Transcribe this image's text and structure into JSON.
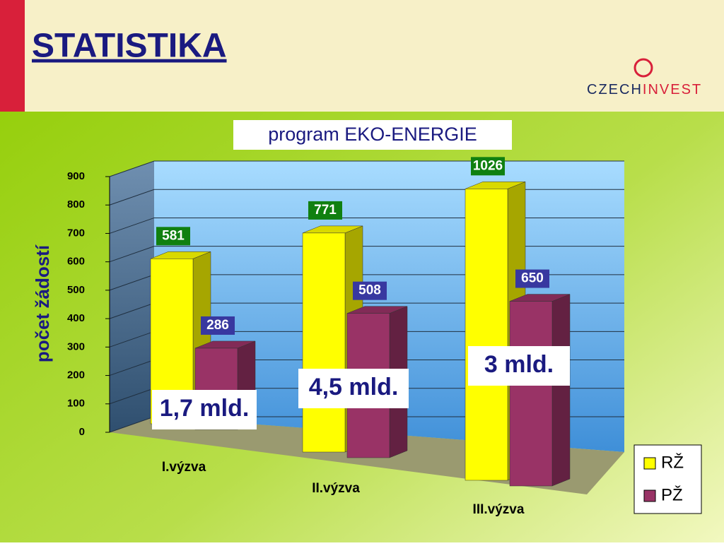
{
  "slide_title": "STATISTIKA",
  "logo": {
    "left": "CZECH",
    "right": "INVEST"
  },
  "chart_data": {
    "type": "bar3d",
    "title": "program EKO-ENERGIE",
    "y_label": "počet žádostí",
    "categories": [
      "I.výzva",
      "II.výzva",
      "III.výzva"
    ],
    "series": [
      {
        "name": "RŽ",
        "color": "#ffff00",
        "values": [
          581,
          771,
          1026
        ]
      },
      {
        "name": "PŽ",
        "color": "#993366",
        "values": [
          286,
          508,
          650
        ]
      }
    ],
    "ylim": [
      0,
      900
    ],
    "yticks": [
      0,
      100,
      200,
      300,
      400,
      500,
      600,
      700,
      800,
      900
    ],
    "grid": true,
    "legend": "bottom-right",
    "annotations": [
      "1,7 mld.",
      "4,5 mld.",
      "3 mld."
    ]
  }
}
